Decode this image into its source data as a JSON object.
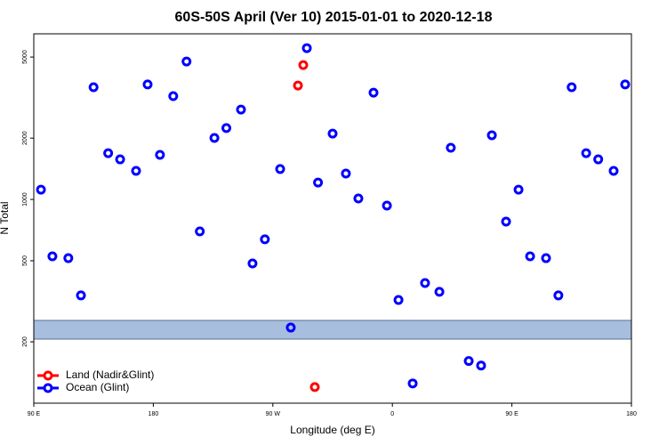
{
  "chart_data": {
    "type": "scatter",
    "title": "60S-50S April (Ver 10)   2015-01-01 to 2020-12-18",
    "x_label": "Longitude (deg E)",
    "y_label": "N Total",
    "xlim": [
      90,
      540
    ],
    "ylim": [
      100,
      6500
    ],
    "y_log": true,
    "xticks": [
      {
        "value": 90,
        "label": "90 E"
      },
      {
        "value": 180,
        "label": "180"
      },
      {
        "value": 270,
        "label": "90 W"
      },
      {
        "value": 360,
        "label": "0"
      },
      {
        "value": 450,
        "label": "90 E"
      },
      {
        "value": 540,
        "label": "180"
      }
    ],
    "yticks": [
      200,
      500,
      1000,
      2000,
      5000
    ],
    "legend": "bottom-left",
    "series": [
      {
        "name": "Land (Nadir&Glint)",
        "color": "#ff0000",
        "x": [
          292.9,
          288.9,
          301.6
        ],
        "values": [
          4567,
          3622,
          120
        ]
      },
      {
        "name": "Ocean (Glint)",
        "color": "#0000ff",
        "x": [
          95.4,
          104,
          116,
          125.5,
          135,
          146,
          155,
          167,
          175.7,
          185,
          195,
          205,
          215,
          226,
          235,
          246,
          254.7,
          264,
          275.5,
          283.5,
          295.6,
          304,
          315,
          325,
          334.4,
          345.8,
          355.9,
          364.6,
          375.3,
          384.6,
          395.4,
          404,
          417.5,
          426.8,
          434.9,
          445.6,
          455,
          463.7,
          475.7,
          485,
          495,
          505.9,
          515,
          526.6,
          535.3
        ],
        "values": [
          1117,
          526,
          515,
          338,
          3556,
          1687,
          1573,
          1381,
          3667,
          1655,
          3213,
          4754,
          697,
          2004,
          2240,
          2762,
          485,
          637,
          1410,
          235,
          5530,
          1210,
          2104,
          1340,
          1011,
          3342,
          933,
          321,
          125,
          389,
          352,
          1794,
          161,
          153,
          2066,
          778,
          1117,
          526,
          515,
          338,
          3556,
          1687,
          1573,
          1381,
          3667
        ]
      }
    ]
  }
}
